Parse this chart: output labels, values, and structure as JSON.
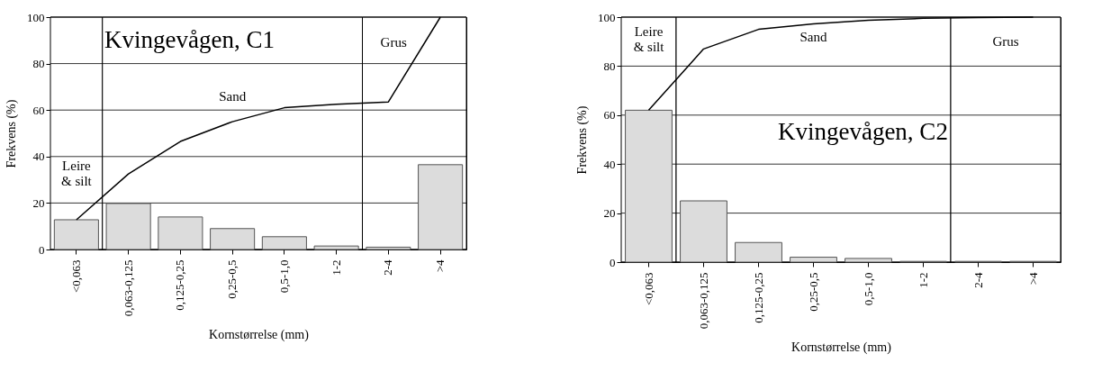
{
  "chart_data": [
    {
      "type": "bar",
      "title": "Kvingevågen, C1",
      "xlabel": "Kornstørrelse (mm)",
      "ylabel": "Frekvens (%)",
      "categories": [
        "<0,063",
        "0,063-0,125",
        "0,125-0,25",
        "0,25-0,5",
        "0,5-1,0",
        "1-2",
        "2-4",
        ">4"
      ],
      "series": [
        {
          "color": "#dcdcdc",
          "values": [
            12.8,
            19.8,
            14,
            9,
            5.5,
            1.5,
            1,
            36.5
          ]
        },
        {
          "type": "line",
          "color": "#000000",
          "values": [
            12.8,
            32.5,
            46.5,
            55,
            61,
            62.5,
            63.5,
            100
          ]
        }
      ],
      "ylim": [
        0,
        100
      ],
      "yticks": [
        0,
        20,
        40,
        60,
        80,
        100
      ],
      "grid": true,
      "bands": [
        {
          "axis": "x",
          "from": "<0,063",
          "to": "<0,063",
          "label": "Leire\n& silt",
          "color": "#ffffff"
        },
        {
          "axis": "x",
          "from": "0,063-0,125",
          "to": "1-2",
          "label": "Sand",
          "color": "#ffffff"
        },
        {
          "axis": "x",
          "from": "2-4",
          "to": ">4",
          "label": "Grus",
          "color": "#ffffff"
        }
      ]
    },
    {
      "type": "bar",
      "title": "Kvingevågen, C2",
      "xlabel": "Kornstørrelse (mm)",
      "ylabel": "Frekvens (%)",
      "categories": [
        "<0,063",
        "0,063-0,125",
        "0,125-0,25",
        "0,25-0,5",
        "0,5-1,0",
        "1-2",
        "2-4",
        ">4"
      ],
      "series": [
        {
          "color": "#dcdcdc",
          "values": [
            62,
            25,
            8,
            2,
            1.5,
            0.3,
            0.3,
            0.3
          ]
        },
        {
          "type": "line",
          "color": "#000000",
          "values": [
            62,
            87,
            95,
            97.2,
            98.7,
            99.5,
            99.8,
            100
          ]
        }
      ],
      "ylim": [
        0,
        100
      ],
      "yticks": [
        0,
        20,
        40,
        60,
        80,
        100
      ],
      "grid": true,
      "bands": [
        {
          "axis": "x",
          "from": "<0,063",
          "to": "<0,063",
          "label": "Leire\n& silt",
          "color": "#ffffff"
        },
        {
          "axis": "x",
          "from": "0,063-0,125",
          "to": "1-2",
          "label": "Sand",
          "color": "#ffffff"
        },
        {
          "axis": "x",
          "from": "2-4",
          "to": ">4",
          "label": "Grus",
          "color": "#ffffff"
        }
      ]
    }
  ]
}
